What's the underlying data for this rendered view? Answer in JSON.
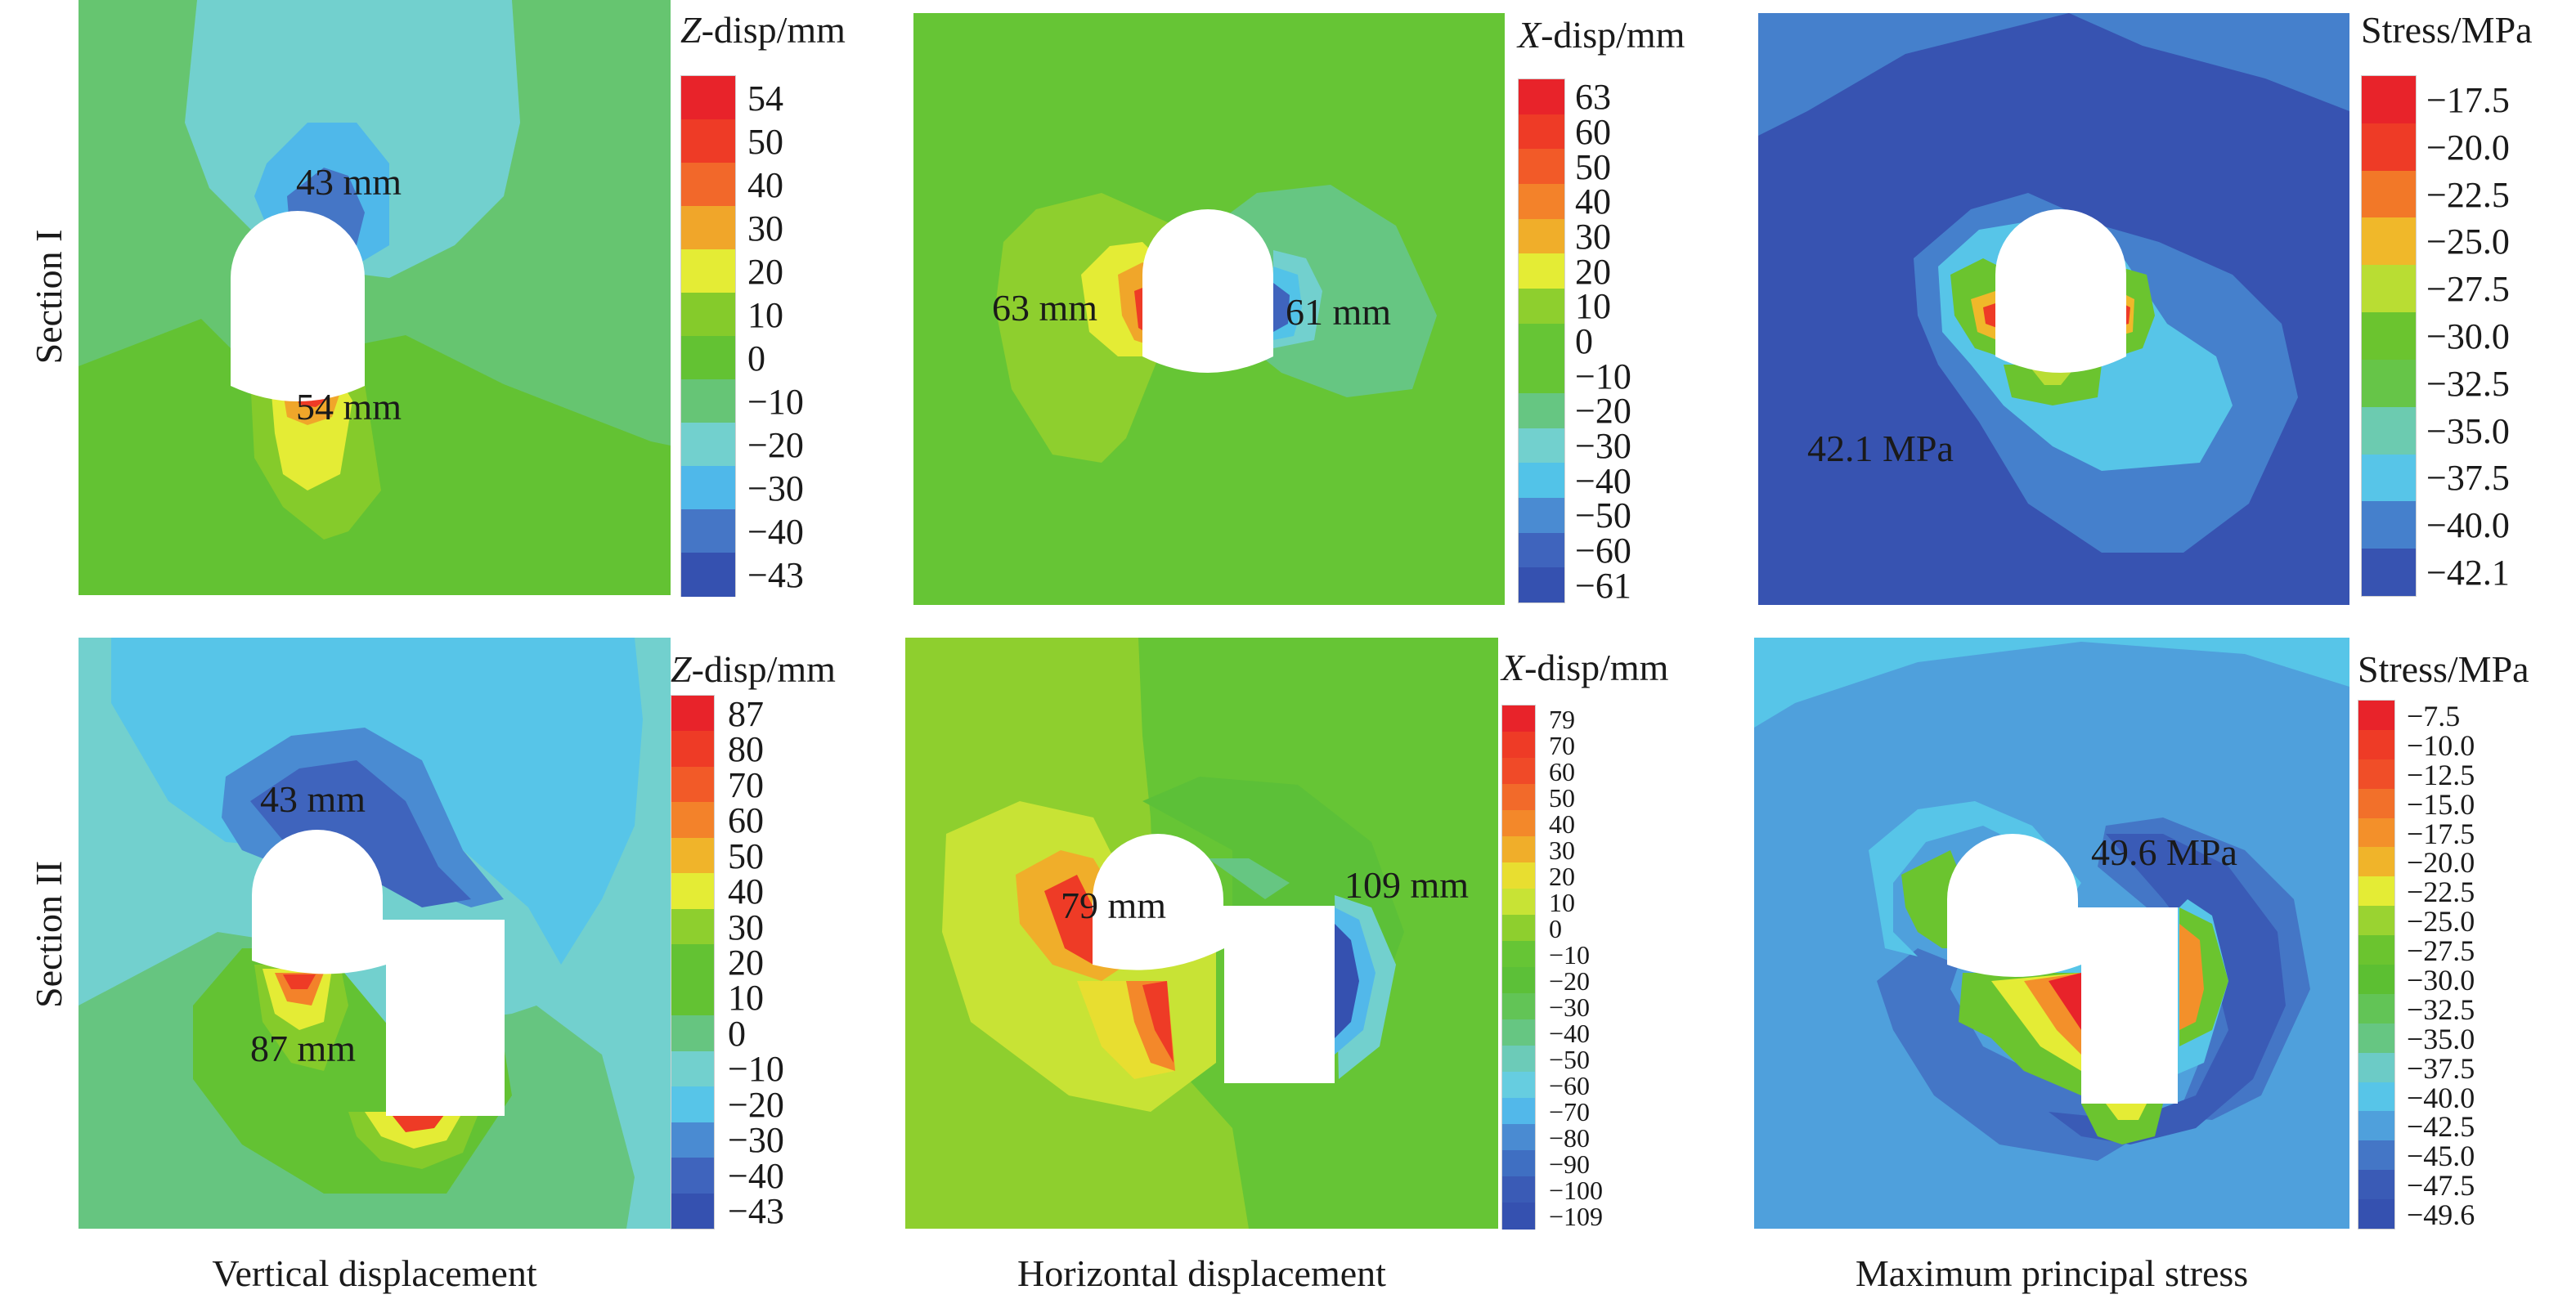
{
  "chart_data": [
    {
      "type": "heatmap",
      "id": "s1-vertical",
      "section": "Section I",
      "quantity": "Vertical displacement",
      "colorbar": {
        "title_var": "Z",
        "title_rest": "-disp/mm",
        "ticks": [
          "54",
          "50",
          "40",
          "30",
          "20",
          "10",
          "0",
          "−10",
          "−20",
          "−30",
          "−40",
          "−43"
        ],
        "colors": [
          "#e8232a",
          "#ee3b26",
          "#f2682a",
          "#f0a62a",
          "#e4ec35",
          "#85cb2b",
          "#63c233",
          "#66c576",
          "#72d0ce",
          "#4fb8ea",
          "#4576c6",
          "#3551b0"
        ],
        "range": [
          -43,
          54
        ]
      },
      "annotations": [
        {
          "text": "43 mm",
          "value": -43,
          "where": "above tunnel crown"
        },
        {
          "text": "54 mm",
          "value": 54,
          "where": "below tunnel floor"
        }
      ]
    },
    {
      "type": "heatmap",
      "id": "s1-horizontal",
      "section": "Section I",
      "quantity": "Horizontal displacement",
      "colorbar": {
        "title_var": "X",
        "title_rest": "-disp/mm",
        "ticks": [
          "63",
          "60",
          "50",
          "40",
          "30",
          "20",
          "10",
          "0",
          "−10",
          "−20",
          "−30",
          "−40",
          "−50",
          "−60",
          "−61"
        ],
        "colors": [
          "#e8232a",
          "#ee3b26",
          "#f25a28",
          "#f3822a",
          "#f0ae2a",
          "#e4ec35",
          "#8ecf2e",
          "#66c535",
          "#66c535",
          "#66c682",
          "#72d0ce",
          "#52c3e8",
          "#4a8bd2",
          "#3f64bd",
          "#3551b0"
        ],
        "range": [
          -61,
          63
        ]
      },
      "annotations": [
        {
          "text": "63 mm",
          "value": 63,
          "where": "left sidewall"
        },
        {
          "text": "61 mm",
          "value": -61,
          "where": "right sidewall"
        }
      ]
    },
    {
      "type": "heatmap",
      "id": "s1-stress",
      "section": "Section I",
      "quantity": "Maximum principal stress",
      "colorbar": {
        "title_var": "",
        "title_rest": "Stress/MPa",
        "ticks": [
          "−17.5",
          "−20.0",
          "−22.5",
          "−25.0",
          "−27.5",
          "−30.0",
          "−32.5",
          "−35.0",
          "−37.5",
          "−40.0",
          "−42.1"
        ],
        "colors": [
          "#e8232a",
          "#ee3b26",
          "#f27828",
          "#f0b82a",
          "#b9dd33",
          "#6bc42f",
          "#66c548",
          "#6ccbb0",
          "#57c5e8",
          "#4580cc",
          "#3753b1"
        ],
        "range": [
          -42.1,
          -17.5
        ]
      },
      "annotations": [
        {
          "text": "42.1 MPa",
          "value": -42.1,
          "where": "lower left"
        }
      ]
    },
    {
      "type": "heatmap",
      "id": "s2-vertical",
      "section": "Section II",
      "quantity": "Vertical displacement",
      "colorbar": {
        "title_var": "Z",
        "title_rest": "-disp/mm",
        "ticks": [
          "87",
          "80",
          "70",
          "60",
          "50",
          "40",
          "30",
          "20",
          "10",
          "0",
          "−10",
          "−20",
          "−30",
          "−40",
          "−43"
        ],
        "colors": [
          "#e8232a",
          "#ee3b26",
          "#f25a28",
          "#f3822a",
          "#f0b42a",
          "#e4ec35",
          "#8ecf2e",
          "#63c233",
          "#63c233",
          "#66c580",
          "#72d0ce",
          "#57c5e8",
          "#4a8bd2",
          "#3f64bd",
          "#3551b0"
        ],
        "range": [
          -43,
          87
        ]
      },
      "annotations": [
        {
          "text": "43 mm",
          "value": -43,
          "where": "above arch crown"
        },
        {
          "text": "87 mm",
          "value": 87,
          "where": "below arch floor"
        }
      ]
    },
    {
      "type": "heatmap",
      "id": "s2-horizontal",
      "section": "Section II",
      "quantity": "Horizontal displacement",
      "colorbar": {
        "title_var": "X",
        "title_rest": "-disp/mm",
        "ticks": [
          "79",
          "70",
          "60",
          "50",
          "40",
          "30",
          "20",
          "10",
          "0",
          "−10",
          "−20",
          "−30",
          "−40",
          "−50",
          "−60",
          "−70",
          "−80",
          "−90",
          "−100",
          "−109"
        ],
        "colors": [
          "#e8232a",
          "#ee3b26",
          "#f04a28",
          "#f26a2a",
          "#f3882a",
          "#f0ae2a",
          "#e8de30",
          "#c8e335",
          "#8ecf2e",
          "#66c535",
          "#5cc038",
          "#62c456",
          "#66c682",
          "#6ccbb8",
          "#66cde0",
          "#52b8ea",
          "#4a8bd2",
          "#3f6fc2",
          "#3a5bb6",
          "#3551b0"
        ],
        "range": [
          -109,
          79
        ]
      },
      "annotations": [
        {
          "text": "79 mm",
          "value": 79,
          "where": "left of chamber"
        },
        {
          "text": "109 mm",
          "value": -109,
          "where": "right of chamber"
        }
      ]
    },
    {
      "type": "heatmap",
      "id": "s2-stress",
      "section": "Section II",
      "quantity": "Maximum principal stress",
      "colorbar": {
        "title_var": "",
        "title_rest": "Stress/MPa",
        "ticks": [
          "−7.5",
          "−10.0",
          "−12.5",
          "−15.0",
          "−17.5",
          "−20.0",
          "−22.5",
          "−25.0",
          "−27.5",
          "−30.0",
          "−32.5",
          "−35.0",
          "−37.5",
          "−40.0",
          "−42.5",
          "−45.0",
          "−47.5",
          "−49.6"
        ],
        "colors": [
          "#e8232a",
          "#ee3b26",
          "#f04e28",
          "#f2702a",
          "#f3902a",
          "#f0b42a",
          "#e4ec35",
          "#9ad331",
          "#6bc42f",
          "#5cbf32",
          "#62c456",
          "#66c682",
          "#6ccbc6",
          "#57c5e8",
          "#4fa0dc",
          "#4476c6",
          "#3a5bb6",
          "#3551b0"
        ],
        "range": [
          -49.6,
          -7.5
        ]
      },
      "annotations": [
        {
          "text": "49.6 MPa",
          "value": -49.6,
          "where": "upper right of chamber"
        }
      ]
    }
  ],
  "row_labels": [
    "Section I",
    "Section II"
  ],
  "column_labels": [
    "Vertical displacement",
    "Horizontal displacement",
    "Maximum principal stress"
  ]
}
